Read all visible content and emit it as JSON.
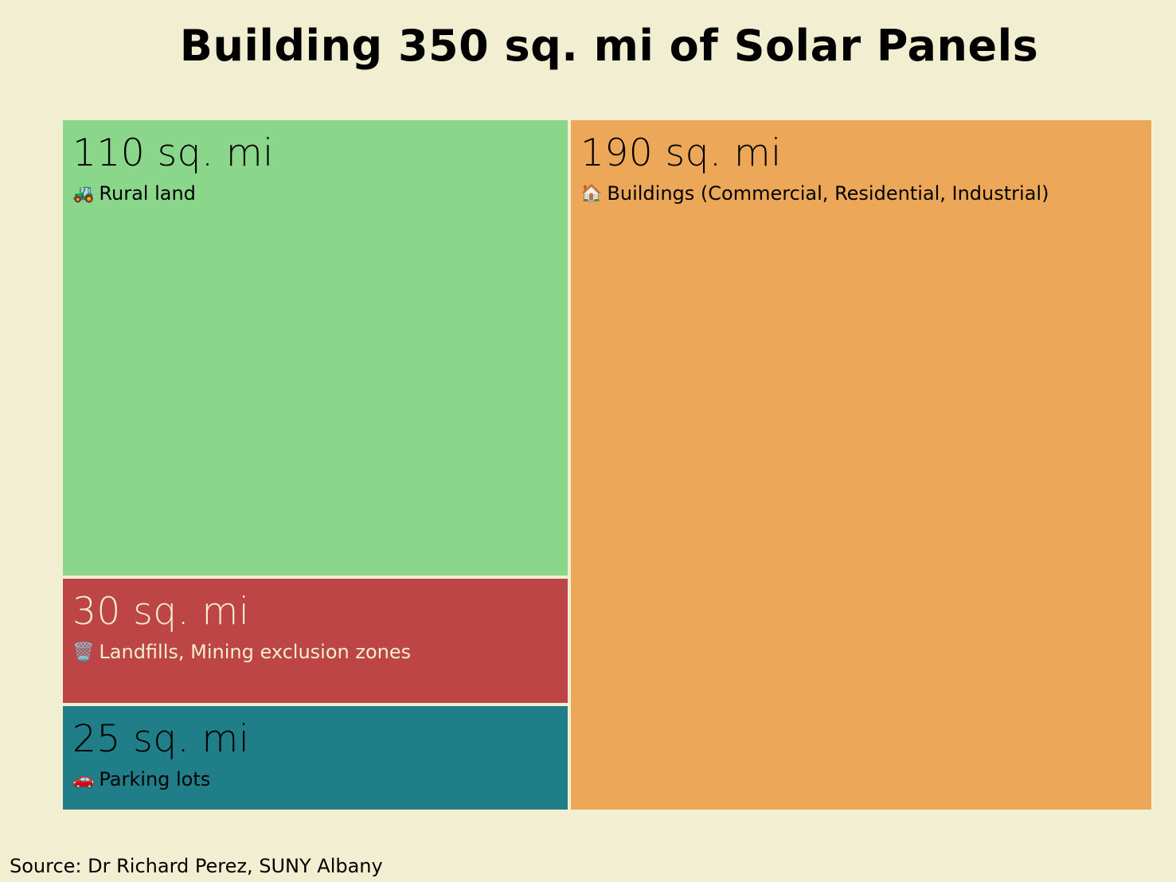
{
  "chart_data": {
    "type": "treemap",
    "title": "Building 350 sq. mi of Solar Panels",
    "unit": "sq. mi",
    "items": [
      {
        "value": 110,
        "value_label": "110 sq. mi",
        "label": "Rural land",
        "icon": "tractor-icon",
        "emoji": "🚜",
        "color": "#8ad68a",
        "text_color": "#000000",
        "group": "left"
      },
      {
        "value": 30,
        "value_label": "30 sq. mi",
        "label": "Landfills, Mining exclusion zones",
        "icon": "wastebasket-icon",
        "emoji": "🗑️",
        "color": "#bd4545",
        "text_color": "#f2eed1",
        "group": "left"
      },
      {
        "value": 25,
        "value_label": "25 sq. mi",
        "label": "Parking lots",
        "icon": "car-icon",
        "emoji": "🚗",
        "color": "#207e89",
        "text_color": "#000000",
        "group": "left"
      },
      {
        "value": 190,
        "value_label": "190 sq. mi",
        "label": "Buildings (Commercial, Residential, Industrial)",
        "icon": "house-icon",
        "emoji": "🏠",
        "color": "#eca758",
        "text_color": "#000000",
        "group": "right"
      }
    ]
  },
  "background_color": "#f2eed1",
  "source": "Source: Dr Richard Perez, SUNY Albany"
}
